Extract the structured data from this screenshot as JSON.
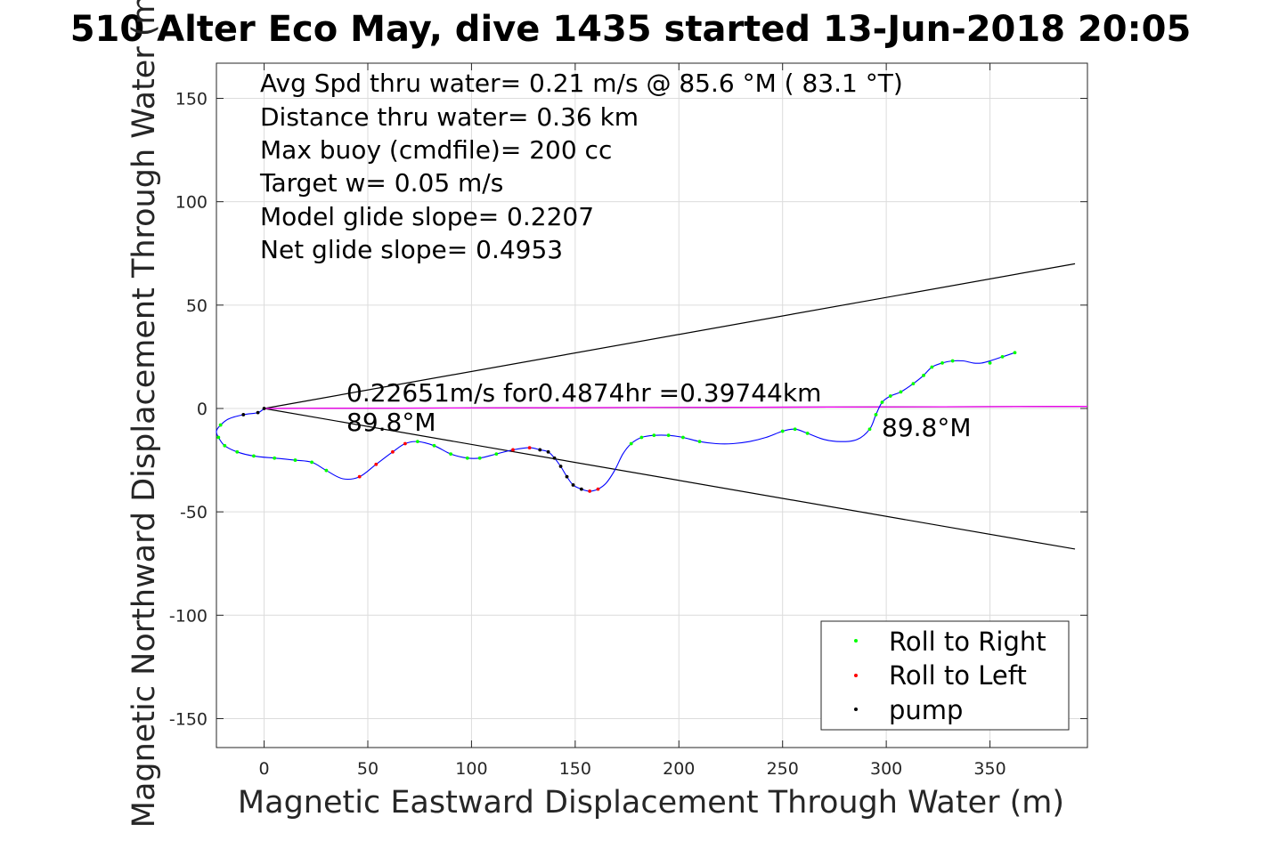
{
  "chart_data": {
    "type": "line",
    "title": "510 Alter Eco May, dive 1435 started 13-Jun-2018 20:05",
    "xlabel": "Magnetic Eastward Displacement Through Water (m)",
    "ylabel": "Magnetic Northward Displacement Through Water (m)",
    "xlim": [
      -23,
      397
    ],
    "ylim": [
      -164,
      167
    ],
    "x_ticks": [
      0,
      50,
      100,
      150,
      200,
      250,
      300,
      350
    ],
    "y_ticks": [
      150,
      100,
      50,
      0,
      -50,
      -100,
      -150
    ],
    "grid": true,
    "legend_position": "bottom-right",
    "stats_lines": [
      "Avg Spd thru water=  0.21 m/s @  85.6 °M ( 83.1 °T)",
      "Distance thru water=  0.36 km",
      "Max buoy (cmdfile)= 200 cc",
      "Target w= 0.05 m/s",
      "Model glide slope= 0.2207",
      "Net glide slope= 0.4953"
    ],
    "annotations": {
      "speed": "0.22651m/s for0.4874hr =0.39744km",
      "heading_left": "89.8°M",
      "heading_right": "89.8°M"
    },
    "legend": [
      {
        "label": "Roll to Right",
        "color": "#00ff00"
      },
      {
        "label": "Roll to Left",
        "color": "#ff0000"
      },
      {
        "label": "pump",
        "color": "#000000"
      }
    ],
    "track": {
      "name": "displacement",
      "color": "#0000ff",
      "x": [
        0,
        -3,
        -10,
        -17,
        -21,
        -23,
        -22,
        -19,
        -13,
        -5,
        5,
        15,
        23,
        30,
        38,
        46,
        54,
        62,
        68,
        74,
        82,
        90,
        98,
        104,
        112,
        120,
        128,
        133,
        137,
        140,
        143,
        146,
        149,
        153,
        157,
        161,
        165,
        169,
        173,
        177,
        182,
        188,
        195,
        202,
        210,
        218,
        226,
        234,
        242,
        250,
        256,
        262,
        270,
        278,
        286,
        292,
        295,
        298,
        302,
        307,
        313,
        318,
        322,
        327,
        332,
        337,
        342,
        346,
        350,
        356,
        362
      ],
      "y": [
        0,
        -2,
        -3,
        -5,
        -8,
        -11,
        -14,
        -18,
        -21,
        -23,
        -24,
        -25,
        -26,
        -30,
        -34,
        -33,
        -27,
        -21,
        -17,
        -16,
        -18,
        -22,
        -24,
        -24,
        -22,
        -20,
        -19,
        -20,
        -21,
        -24,
        -28,
        -33,
        -37,
        -39,
        -40,
        -39,
        -36,
        -30,
        -22,
        -17,
        -14,
        -13,
        -13,
        -14,
        -16,
        -17,
        -17,
        -16,
        -14,
        -11,
        -10,
        -12,
        -15,
        -16,
        -15,
        -10,
        -3,
        3,
        6,
        8,
        12,
        16,
        20,
        22,
        23,
        23,
        22,
        22,
        23,
        25,
        27
      ]
    },
    "markers": {
      "roll_right": {
        "color": "#00ff00",
        "x": [
          -21,
          -22,
          -19,
          -13,
          -5,
          5,
          15,
          23,
          30,
          74,
          82,
          90,
          98,
          104,
          112,
          177,
          182,
          188,
          195,
          202,
          210,
          250,
          256,
          262,
          292,
          295,
          298,
          302,
          307,
          313,
          318,
          322,
          327,
          332,
          350,
          356,
          362
        ],
        "y": [
          -8,
          -14,
          -18,
          -21,
          -23,
          -24,
          -25,
          -26,
          -30,
          -16,
          -18,
          -22,
          -24,
          -24,
          -22,
          -17,
          -14,
          -13,
          -13,
          -14,
          -16,
          -11,
          -10,
          -12,
          -10,
          -3,
          3,
          6,
          8,
          12,
          16,
          20,
          22,
          23,
          22,
          25,
          27
        ]
      },
      "roll_left": {
        "color": "#ff0000",
        "x": [
          46,
          54,
          62,
          68,
          120,
          128,
          157,
          161
        ],
        "y": [
          -33,
          -27,
          -21,
          -17,
          -20,
          -19,
          -40,
          -39
        ]
      },
      "pump": {
        "color": "#000000",
        "x": [
          0,
          -3,
          -10,
          133,
          137,
          140,
          143,
          146,
          149,
          153
        ],
        "y": [
          0,
          -2,
          -3,
          -20,
          -21,
          -24,
          -28,
          -33,
          -37,
          -39
        ]
      }
    },
    "reference_lines": [
      {
        "color": "#000000",
        "x": [
          0,
          391
        ],
        "y": [
          0,
          70
        ]
      },
      {
        "color": "#000000",
        "x": [
          0,
          391
        ],
        "y": [
          0,
          -68
        ]
      },
      {
        "color": "#000000",
        "x": [
          0,
          397
        ],
        "y": [
          0,
          1
        ]
      },
      {
        "color": "#ff00ff",
        "x": [
          0,
          397
        ],
        "y": [
          0,
          1
        ]
      }
    ]
  }
}
